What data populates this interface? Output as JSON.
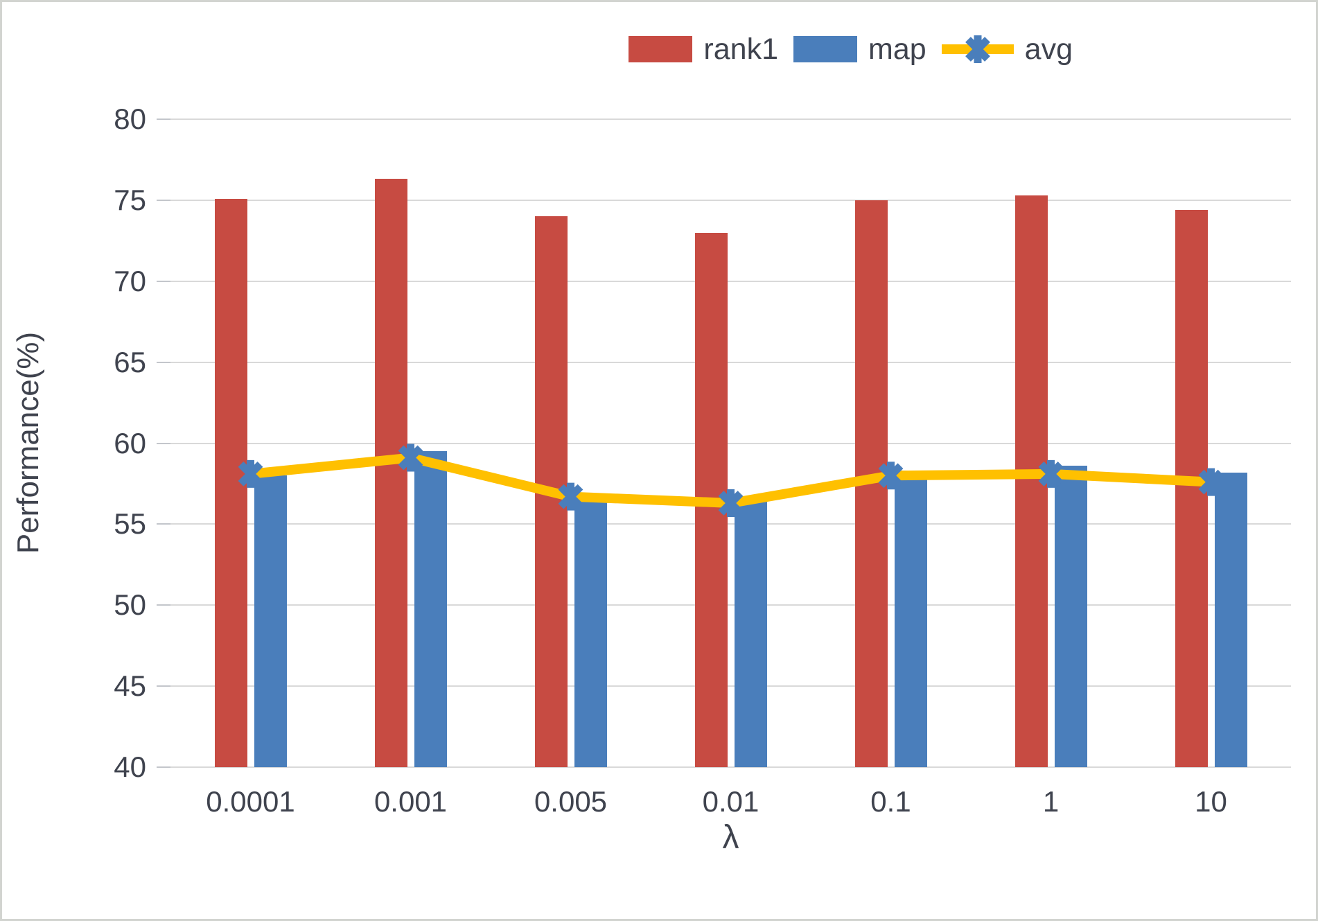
{
  "chart_data": {
    "type": "bar",
    "subtype": "grouped-bars-with-line-overlay",
    "title": "",
    "xlabel": "λ",
    "ylabel": "Performance(%)",
    "categories": [
      "0.0001",
      "0.001",
      "0.005",
      "0.01",
      "0.1",
      "1",
      "10"
    ],
    "ylim": [
      40,
      80
    ],
    "yticks": [
      40,
      45,
      50,
      55,
      60,
      65,
      70,
      75,
      80
    ],
    "grid": "horizontal-on",
    "legend_position": "top-right",
    "series": [
      {
        "name": "rank1",
        "type": "bar",
        "color": "#c74b42",
        "values": [
          75.1,
          76.3,
          74.0,
          73.0,
          75.0,
          75.3,
          74.4
        ]
      },
      {
        "name": "map",
        "type": "bar",
        "color": "#4a7ebb",
        "values": [
          58.0,
          59.5,
          56.9,
          56.4,
          58.3,
          58.6,
          58.2
        ]
      },
      {
        "name": "avg",
        "type": "line",
        "color": "#ffc000",
        "marker": "star-x",
        "marker_color": "#4a7ebb",
        "values": [
          58.1,
          59.1,
          56.7,
          56.3,
          58.0,
          58.1,
          57.6
        ]
      }
    ]
  },
  "colors": {
    "background": "#ffffff",
    "frame_border": "#d2d4d0",
    "gridline": "#d9d9d9",
    "axis_text": "#3f434e",
    "rank1_red": "#c74b42",
    "map_blue": "#4a7ebb",
    "avg_yellow": "#ffc000"
  }
}
